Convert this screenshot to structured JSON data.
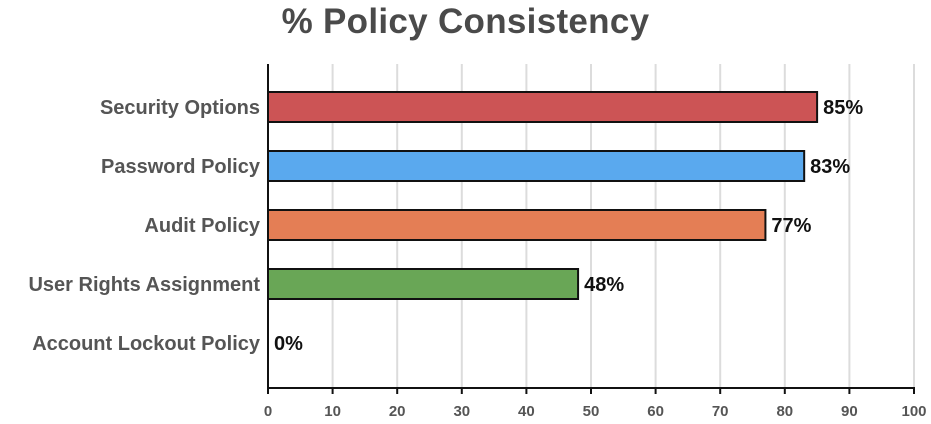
{
  "chart_data": {
    "type": "bar",
    "orientation": "horizontal",
    "title": "% Policy Consistency",
    "xlabel": "",
    "ylabel": "",
    "categories": [
      "Security Options",
      "Password Policy",
      "Audit Policy",
      "User Rights Assignment",
      "Account Lockout Policy"
    ],
    "values": [
      85,
      83,
      77,
      48,
      0
    ],
    "value_labels": [
      "85%",
      "83%",
      "77%",
      "48%",
      "0%"
    ],
    "colors": [
      "#cc5455",
      "#5aa9ee",
      "#e47e55",
      "#69a656",
      "#999999"
    ],
    "xlim": [
      0,
      100
    ],
    "xticks": [
      0,
      10,
      20,
      30,
      40,
      50,
      60,
      70,
      80,
      90,
      100
    ],
    "grid": "vertical",
    "legend": "none"
  }
}
